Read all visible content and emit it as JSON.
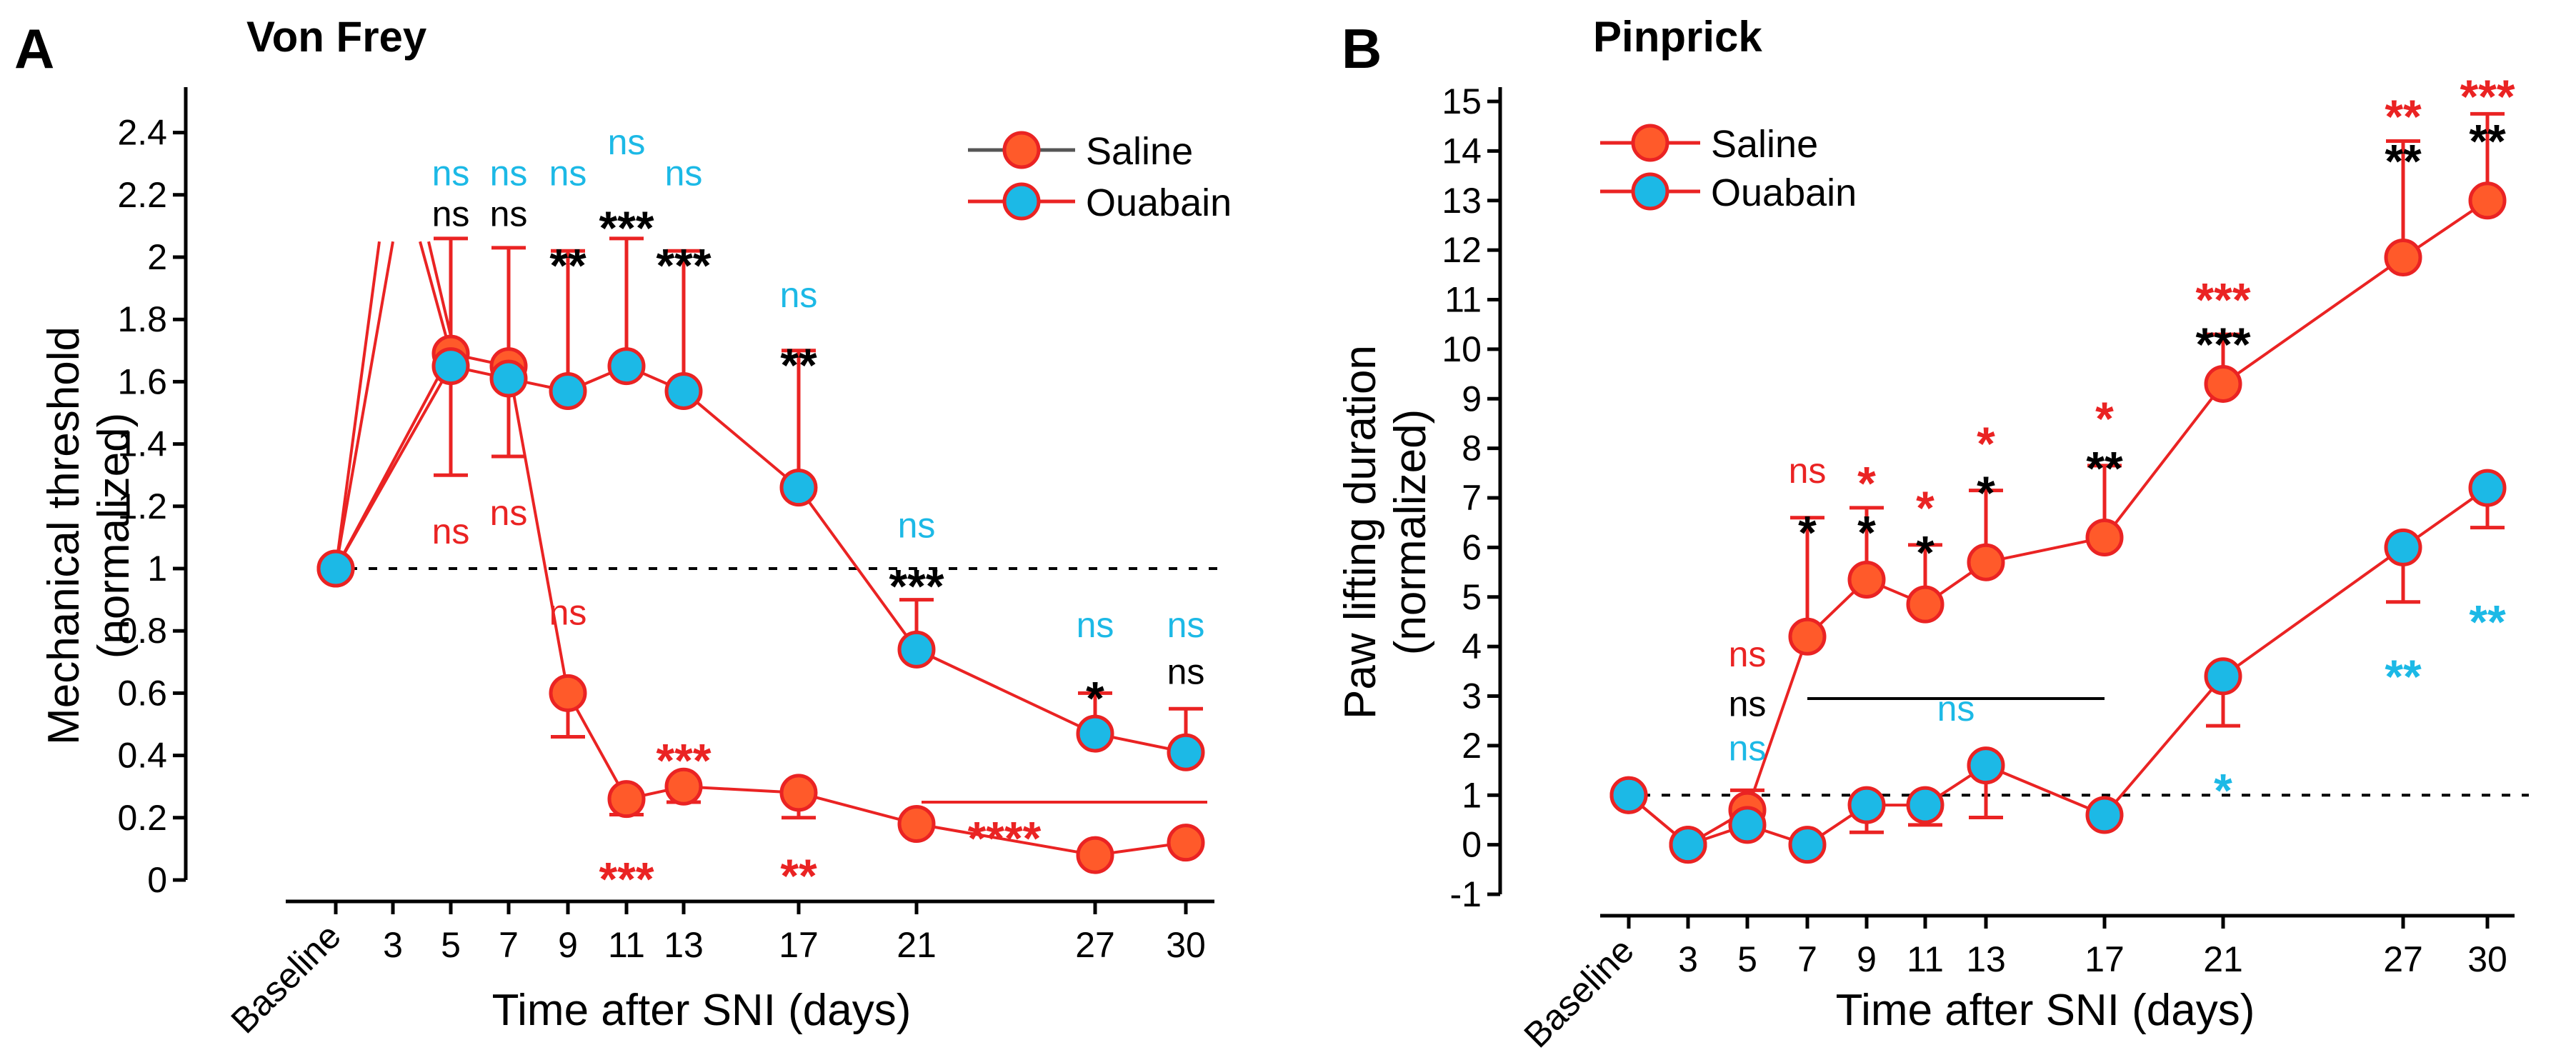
{
  "colors": {
    "saline": "#ff5a2a",
    "saline_stroke": "#ea2323",
    "ouabain": "#1cb9e6",
    "black": "#000000"
  },
  "chart_data": [
    {
      "type": "line",
      "panel_letter": "A",
      "title": "Von Frey",
      "ylabel_line1": "Mechanical threshold",
      "ylabel_line2": "(normalized)",
      "xlabel": "Time after SNI (days)",
      "ylim": [
        0,
        2.5
      ],
      "yticks": [
        "0",
        "0.2",
        "0.4",
        "0.6",
        "0.8",
        "1",
        "1.2",
        "1.4",
        "1.6",
        "1.8",
        "2",
        "2.2",
        "2.4"
      ],
      "categories": [
        "Baseline",
        "3",
        "5",
        "7",
        "9",
        "11",
        "13",
        "17",
        "21",
        "27",
        "30"
      ],
      "reference_line": 1,
      "legend": [
        "Saline",
        "Ouabain"
      ],
      "series": [
        {
          "name": "Saline",
          "x": [
            "Baseline",
            "5",
            "7",
            "9",
            "11",
            "13",
            "17",
            "21",
            "27",
            "30"
          ],
          "values": [
            1.0,
            1.69,
            1.65,
            0.6,
            0.26,
            0.3,
            0.28,
            0.18,
            0.08,
            0.12
          ]
        },
        {
          "name": "Ouabain",
          "x": [
            "Baseline",
            "5",
            "7",
            "9",
            "11",
            "13",
            "17",
            "21",
            "27",
            "30"
          ],
          "values": [
            1.0,
            1.65,
            1.61,
            1.57,
            1.65,
            1.57,
            1.26,
            0.74,
            0.47,
            0.41
          ]
        }
      ],
      "annotations": [
        {
          "text": "ns",
          "color": "ouabain",
          "x": "5",
          "y": 2.23
        },
        {
          "text": "ns",
          "color": "black",
          "x": "5",
          "y": 2.1
        },
        {
          "text": "ns",
          "color": "ouabain",
          "x": "7",
          "y": 2.23
        },
        {
          "text": "ns",
          "color": "black",
          "x": "7",
          "y": 2.1
        },
        {
          "text": "ns",
          "color": "ouabain",
          "x": "9",
          "y": 2.23
        },
        {
          "text": "**",
          "color": "black",
          "x": "9",
          "y": 1.99
        },
        {
          "text": "ns",
          "color": "ouabain",
          "x": "11",
          "y": 2.33
        },
        {
          "text": "***",
          "color": "black",
          "x": "11",
          "y": 2.11
        },
        {
          "text": "ns",
          "color": "ouabain",
          "x": "13",
          "y": 2.23
        },
        {
          "text": "***",
          "color": "black",
          "x": "13",
          "y": 1.99
        },
        {
          "text": "ns",
          "color": "ouabain",
          "x": "17",
          "y": 1.84
        },
        {
          "text": "**",
          "color": "black",
          "x": "17",
          "y": 1.67
        },
        {
          "text": "ns",
          "color": "ouabain",
          "x": "21",
          "y": 1.1
        },
        {
          "text": "***",
          "color": "black",
          "x": "21",
          "y": 0.96
        },
        {
          "text": "ns",
          "color": "ouabain",
          "x": "27",
          "y": 0.78
        },
        {
          "text": "*",
          "color": "black",
          "x": "27",
          "y": 0.6
        },
        {
          "text": "ns",
          "color": "ouabain",
          "x": "30",
          "y": 0.78
        },
        {
          "text": "ns",
          "color": "black",
          "x": "30",
          "y": 0.63
        },
        {
          "text": "ns",
          "color": "saline",
          "x": "5",
          "y": 1.08
        },
        {
          "text": "ns",
          "color": "saline",
          "x": "7",
          "y": 1.14
        },
        {
          "text": "ns",
          "color": "saline",
          "x": "9",
          "y": 0.82
        },
        {
          "text": "***",
          "color": "saline",
          "x": "13",
          "y": 0.4
        },
        {
          "text": "***",
          "color": "saline",
          "x": "11",
          "y": 0.02
        },
        {
          "text": "**",
          "color": "saline",
          "x": "17",
          "y": 0.03
        },
        {
          "text": "****",
          "color": "saline",
          "x": "24",
          "y": 0.15
        }
      ]
    },
    {
      "type": "line",
      "panel_letter": "B",
      "title": "Pinprick",
      "ylabel_line1": "Paw lifting duration",
      "ylabel_line2": "(normalized)",
      "xlabel": "Time after SNI (days)",
      "ylim": [
        -1,
        15
      ],
      "yticks": [
        "-1",
        "0",
        "1",
        "2",
        "3",
        "4",
        "5",
        "6",
        "7",
        "8",
        "9",
        "10",
        "11",
        "12",
        "13",
        "14",
        "15"
      ],
      "categories": [
        "Baseline",
        "3",
        "5",
        "7",
        "9",
        "11",
        "13",
        "17",
        "21",
        "27",
        "30"
      ],
      "reference_line": 1,
      "legend": [
        "Saline",
        "Ouabain"
      ],
      "series": [
        {
          "name": "Saline",
          "x": [
            "Baseline",
            "3",
            "5",
            "7",
            "9",
            "11",
            "13",
            "17",
            "21",
            "27",
            "30"
          ],
          "values": [
            1.0,
            0.0,
            0.7,
            4.2,
            5.35,
            4.85,
            5.7,
            6.2,
            9.3,
            11.85,
            13.0
          ]
        },
        {
          "name": "Ouabain",
          "x": [
            "Baseline",
            "3",
            "5",
            "7",
            "9",
            "11",
            "13",
            "17",
            "21",
            "27",
            "30"
          ],
          "values": [
            1.0,
            0.0,
            0.4,
            0.0,
            0.8,
            0.8,
            1.6,
            0.6,
            3.4,
            6.0,
            7.2
          ]
        }
      ],
      "annotations": [
        {
          "text": "ns",
          "color": "saline",
          "x": "5",
          "y": 3.6
        },
        {
          "text": "ns",
          "color": "black",
          "x": "5",
          "y": 2.6
        },
        {
          "text": "ns",
          "color": "ouabain",
          "x": "5",
          "y": 1.7
        },
        {
          "text": "ns",
          "color": "saline",
          "x": "7",
          "y": 7.3
        },
        {
          "text": "*",
          "color": "black",
          "x": "7",
          "y": 6.4
        },
        {
          "text": "*",
          "color": "saline",
          "x": "9",
          "y": 7.4
        },
        {
          "text": "*",
          "color": "black",
          "x": "9",
          "y": 6.4
        },
        {
          "text": "*",
          "color": "saline",
          "x": "11",
          "y": 6.9
        },
        {
          "text": "*",
          "color": "black",
          "x": "11",
          "y": 6.0
        },
        {
          "text": "*",
          "color": "saline",
          "x": "13",
          "y": 8.2
        },
        {
          "text": "*",
          "color": "black",
          "x": "13",
          "y": 7.2
        },
        {
          "text": "*",
          "color": "saline",
          "x": "17",
          "y": 8.7
        },
        {
          "text": "**",
          "color": "black",
          "x": "17",
          "y": 7.7
        },
        {
          "text": "***",
          "color": "saline",
          "x": "21",
          "y": 11.1
        },
        {
          "text": "***",
          "color": "black",
          "x": "21",
          "y": 10.2
        },
        {
          "text": "**",
          "color": "saline",
          "x": "27",
          "y": 14.8
        },
        {
          "text": "**",
          "color": "black",
          "x": "27",
          "y": 13.9
        },
        {
          "text": "***",
          "color": "saline",
          "x": "30",
          "y": 15.2
        },
        {
          "text": "**",
          "color": "black",
          "x": "30",
          "y": 14.3
        },
        {
          "text": "ns",
          "color": "ouabain",
          "x": "12",
          "y": 2.5
        },
        {
          "text": "*",
          "color": "ouabain",
          "x": "21",
          "y": 1.2
        },
        {
          "text": "**",
          "color": "ouabain",
          "x": "27",
          "y": 3.5
        },
        {
          "text": "**",
          "color": "ouabain",
          "x": "30",
          "y": 4.6
        }
      ]
    }
  ]
}
